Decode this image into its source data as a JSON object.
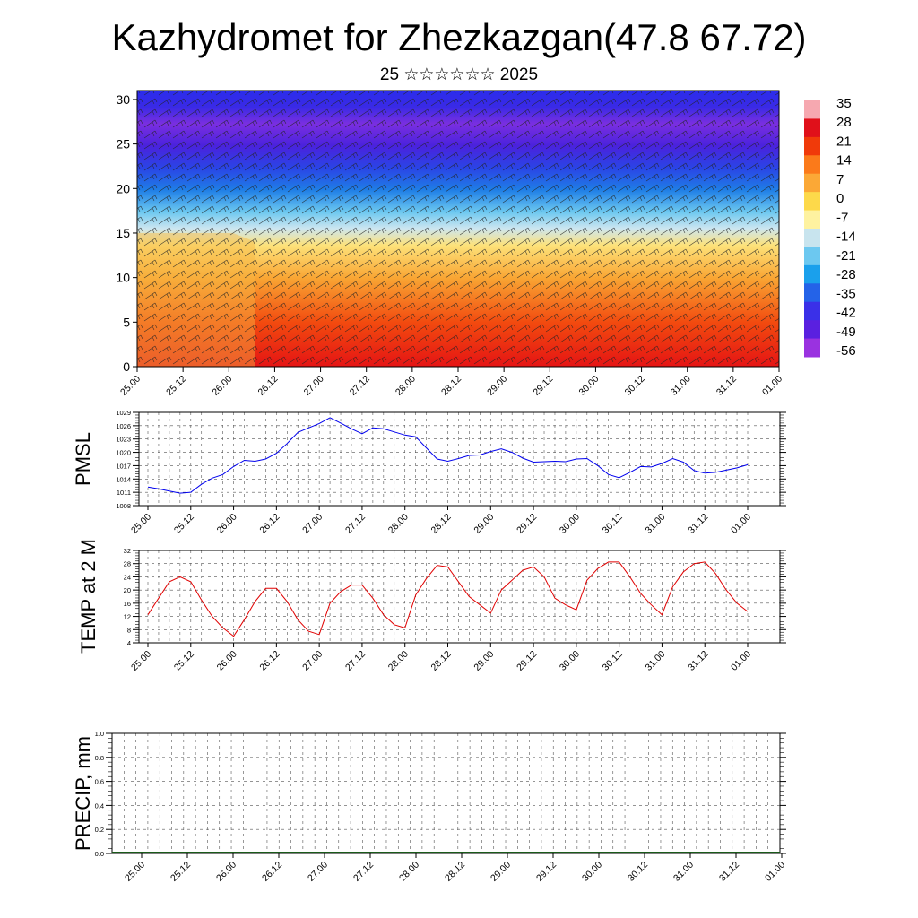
{
  "title": "Kazhydromet for Zhezkazgan(47.8 67.72)",
  "subtitle": "25 ☆☆☆☆☆☆ 2025",
  "x_tick_labels": [
    "25.00",
    "25.12",
    "26.00",
    "26.12",
    "27.00",
    "27.12",
    "28.00",
    "28.12",
    "29.00",
    "29.12",
    "30.00",
    "30.12",
    "31.00",
    "31.12",
    "01.00"
  ],
  "chart_data": [
    {
      "type": "heatmap",
      "name_shown": "",
      "x_ticks": [
        "25.00",
        "25.12",
        "26.00",
        "26.12",
        "27.00",
        "27.12",
        "28.00",
        "28.12",
        "29.00",
        "29.12",
        "30.00",
        "30.12",
        "31.00",
        "31.12",
        "01.00"
      ],
      "y_ticks": [
        0,
        5,
        10,
        15,
        20,
        25,
        30
      ],
      "ylim": [
        0,
        31
      ],
      "colorbar_labels": [
        "35",
        "28",
        "21",
        "14",
        "7",
        "0",
        "-7",
        "-14",
        "-21",
        "-28",
        "-35",
        "-42",
        "-49",
        "-56"
      ],
      "colorbar_colors": [
        "#f6a8b0",
        "#e0101a",
        "#f03a0a",
        "#fb7a1a",
        "#fba836",
        "#fdd94a",
        "#fef2a0",
        "#c8e4ee",
        "#6cc8f0",
        "#1aa0ec",
        "#2463e8",
        "#3a30e8",
        "#5a20e0",
        "#9a32e0"
      ],
      "wind_barbs": true
    },
    {
      "type": "line",
      "ylabel": "PMSL",
      "y_ticks": [
        1008,
        1011,
        1014,
        1017,
        1020,
        1023,
        1026,
        1029
      ],
      "ylim": [
        1008,
        1029
      ],
      "color": "#0000ee",
      "x": [
        "25.00",
        "25.03",
        "25.06",
        "25.09",
        "25.12",
        "25.15",
        "25.18",
        "25.21",
        "26.00",
        "26.03",
        "26.06",
        "26.09",
        "26.12",
        "26.15",
        "26.18",
        "26.21",
        "27.00",
        "27.03",
        "27.06",
        "27.09",
        "27.12",
        "27.15",
        "27.18",
        "27.21",
        "28.00",
        "28.03",
        "28.06",
        "28.09",
        "28.12",
        "28.15",
        "28.18",
        "28.21",
        "29.00",
        "29.03",
        "29.06",
        "29.09",
        "29.12",
        "29.15",
        "29.18",
        "29.21",
        "30.00",
        "30.03",
        "30.06",
        "30.09",
        "30.12",
        "30.15",
        "30.18",
        "30.21",
        "31.00",
        "31.03",
        "31.06",
        "31.09",
        "31.12",
        "31.15",
        "31.18",
        "31.21",
        "01.00"
      ],
      "values": [
        1012.2,
        1011.8,
        1011.3,
        1010.8,
        1011.0,
        1012.8,
        1014.2,
        1015.0,
        1016.8,
        1018.2,
        1018.0,
        1018.5,
        1019.8,
        1022.0,
        1024.5,
        1025.5,
        1026.5,
        1027.8,
        1026.6,
        1025.3,
        1024.2,
        1025.5,
        1025.3,
        1024.6,
        1023.9,
        1023.5,
        1021.0,
        1018.5,
        1018.0,
        1018.6,
        1019.3,
        1019.4,
        1020.2,
        1020.8,
        1020.0,
        1018.7,
        1017.8,
        1017.9,
        1018.0,
        1017.9,
        1018.5,
        1018.6,
        1017.0,
        1015.0,
        1014.3,
        1015.5,
        1016.8,
        1016.7,
        1017.5,
        1018.6,
        1017.8,
        1015.9,
        1015.3,
        1015.5,
        1016.0,
        1016.5,
        1017.2
      ]
    },
    {
      "type": "line",
      "ylabel": "TEMP at 2 M",
      "y_ticks": [
        4,
        8,
        12,
        16,
        20,
        24,
        28,
        32
      ],
      "ylim": [
        4,
        32
      ],
      "color": "#e00000",
      "x": [
        "25.00",
        "25.03",
        "25.06",
        "25.09",
        "25.12",
        "25.15",
        "25.18",
        "25.21",
        "26.00",
        "26.03",
        "26.06",
        "26.09",
        "26.12",
        "26.15",
        "26.18",
        "26.21",
        "27.00",
        "27.03",
        "27.06",
        "27.09",
        "27.12",
        "27.15",
        "27.18",
        "27.21",
        "28.00",
        "28.03",
        "28.06",
        "28.09",
        "28.12",
        "28.15",
        "28.18",
        "28.21",
        "29.00",
        "29.03",
        "29.06",
        "29.09",
        "29.12",
        "29.15",
        "29.18",
        "29.21",
        "30.00",
        "30.03",
        "30.06",
        "30.09",
        "30.12",
        "30.15",
        "30.18",
        "30.21",
        "31.00",
        "31.03",
        "31.06",
        "31.09",
        "31.12",
        "31.15",
        "31.18",
        "31.21",
        "01.00"
      ],
      "values": [
        12.5,
        17.5,
        22.5,
        24.0,
        22.5,
        17.0,
        12.0,
        8.5,
        6.0,
        11.0,
        16.5,
        20.5,
        20.5,
        16.5,
        11.0,
        7.5,
        6.5,
        16.0,
        19.5,
        21.5,
        21.5,
        17.5,
        12.5,
        9.5,
        8.5,
        18.5,
        23.5,
        27.5,
        27.0,
        22.5,
        18.0,
        15.5,
        13.0,
        20.0,
        23.0,
        26.0,
        27.0,
        24.0,
        17.5,
        15.5,
        14.0,
        23.0,
        26.5,
        28.5,
        28.5,
        24.0,
        19.0,
        15.5,
        12.5,
        21.0,
        25.5,
        28.0,
        28.5,
        25.0,
        20.0,
        16.0,
        13.5
      ]
    },
    {
      "type": "bar",
      "ylabel": "PRECIP, mm",
      "y_ticks": [
        "0.0",
        "0.2",
        "0.4",
        "0.6",
        "0.8",
        "1.0"
      ],
      "ylim": [
        0,
        1
      ],
      "values_note_visible": "all zero"
    }
  ]
}
